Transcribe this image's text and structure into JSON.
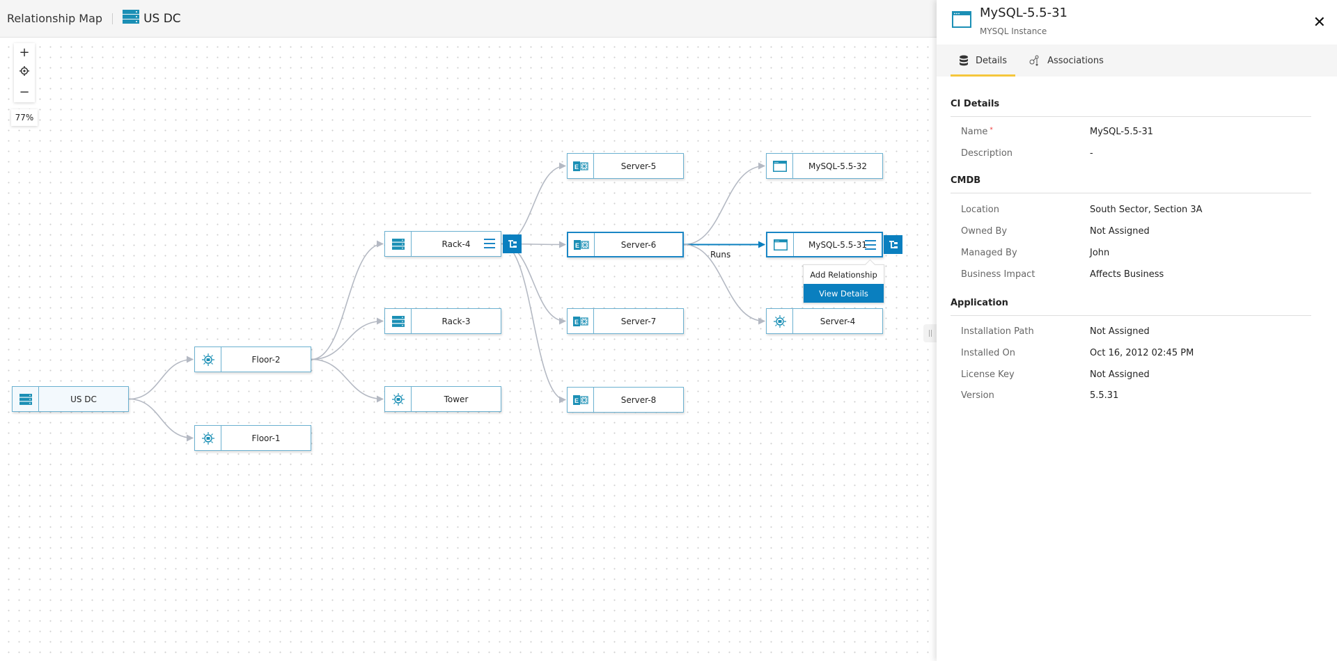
{
  "header": {
    "title": "Relationship Map",
    "breadcrumb": "US DC",
    "breadcrumb_icon": "rack-icon"
  },
  "zoom": {
    "plus": "+",
    "minus": "−",
    "level": "77%"
  },
  "colors": {
    "accent": "#0a7fbf",
    "node_border": "#6ab0d0",
    "edge": "#b4b9c3",
    "tab_underline": "#f5c63b",
    "icon": "#1b8fb5"
  },
  "nodes": [
    {
      "id": "usdc",
      "label": "US DC",
      "icon": "rack-icon"
    },
    {
      "id": "floor2",
      "label": "Floor-2",
      "icon": "floor-icon"
    },
    {
      "id": "floor1",
      "label": "Floor-1",
      "icon": "floor-icon"
    },
    {
      "id": "rack4",
      "label": "Rack-4",
      "icon": "rack-icon"
    },
    {
      "id": "rack3",
      "label": "Rack-3",
      "icon": "rack-icon"
    },
    {
      "id": "tower",
      "label": "Tower",
      "icon": "floor-icon"
    },
    {
      "id": "server5",
      "label": "Server-5",
      "icon": "exchange-server-icon"
    },
    {
      "id": "server6",
      "label": "Server-6",
      "icon": "exchange-server-icon"
    },
    {
      "id": "server7",
      "label": "Server-7",
      "icon": "exchange-server-icon"
    },
    {
      "id": "server8",
      "label": "Server-8",
      "icon": "exchange-server-icon"
    },
    {
      "id": "mysql32",
      "label": "MySQL-5.5-32",
      "icon": "window-icon"
    },
    {
      "id": "mysql31",
      "label": "MySQL-5.5-31",
      "icon": "window-icon"
    },
    {
      "id": "server4",
      "label": "Server-4",
      "icon": "floor-icon"
    }
  ],
  "edges": [
    {
      "from": "usdc",
      "to": "floor2"
    },
    {
      "from": "usdc",
      "to": "floor1"
    },
    {
      "from": "floor2",
      "to": "rack4"
    },
    {
      "from": "floor2",
      "to": "rack3"
    },
    {
      "from": "floor2",
      "to": "tower"
    },
    {
      "from": "rack4",
      "to": "server5"
    },
    {
      "from": "rack4",
      "to": "server6"
    },
    {
      "from": "rack4",
      "to": "server7"
    },
    {
      "from": "rack4",
      "to": "server8"
    },
    {
      "from": "server6",
      "to": "mysql32"
    },
    {
      "from": "server6",
      "to": "mysql31",
      "label": "Runs",
      "highlighted": true
    },
    {
      "from": "server6",
      "to": "server4"
    }
  ],
  "context_menu": {
    "items": [
      "Add Relationship",
      "View Details"
    ],
    "active": "View Details"
  },
  "panel": {
    "title": "MySQL-5.5-31",
    "subtitle": "MYSQL Instance",
    "close": "✕",
    "tabs": [
      {
        "label": "Details",
        "icon": "database-icon",
        "active": true
      },
      {
        "label": "Associations",
        "icon": "associations-icon",
        "active": false
      }
    ],
    "sections": [
      {
        "title": "CI Details",
        "rows": [
          {
            "label": "Name",
            "value": "MySQL-5.5-31",
            "required": "*"
          },
          {
            "label": "Description",
            "value": "-"
          }
        ]
      },
      {
        "title": "CMDB",
        "rows": [
          {
            "label": "Location",
            "value": "South Sector, Section 3A"
          },
          {
            "label": "Owned By",
            "value": "Not Assigned"
          },
          {
            "label": "Managed By",
            "value": "John"
          },
          {
            "label": "Business Impact",
            "value": "Affects Business"
          }
        ]
      },
      {
        "title": "Application",
        "rows": [
          {
            "label": "Installation Path",
            "value": "Not Assigned"
          },
          {
            "label": "Installed On",
            "value": "Oct 16, 2012 02:45 PM"
          },
          {
            "label": "License Key",
            "value": "Not Assigned"
          },
          {
            "label": "Version",
            "value": "5.5.31"
          }
        ]
      }
    ]
  }
}
